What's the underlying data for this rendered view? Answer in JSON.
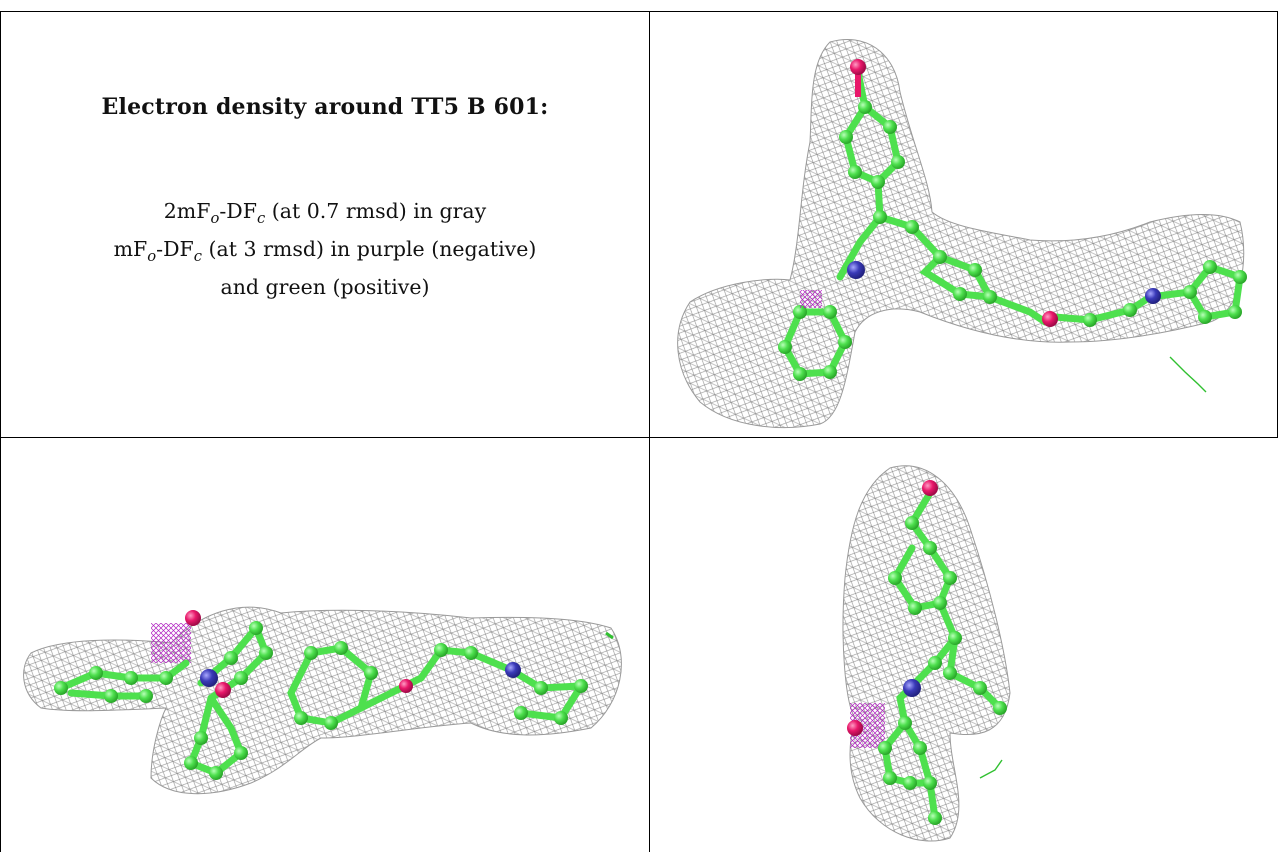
{
  "caption": {
    "title": "Electron density around TT5 B 601:",
    "line1_a": "2mF",
    "line1_sub1": "o",
    "line1_b": "-DF",
    "line1_sub2": "c",
    "line1_c": " (at 0.7 rmsd) in gray",
    "line2_a": "mF",
    "line2_sub1": "o",
    "line2_b": "-DF",
    "line2_sub2": "c",
    "line2_c": " (at 3 rmsd) in purple (negative)",
    "line3": "and green (positive)"
  },
  "colors": {
    "carbon": "#4ee04e",
    "oxygen": "#e8186a",
    "nitrogen": "#3a3ab8",
    "mesh_2fofc": "#8a8a8a",
    "mesh_negative": "#b020c0",
    "mesh_positive": "#30c030"
  },
  "panels": [
    {
      "view": "top-right",
      "description_icon": "molecule-density-view"
    },
    {
      "view": "bottom-left",
      "description_icon": "molecule-density-view"
    },
    {
      "view": "bottom-right",
      "description_icon": "molecule-density-view"
    }
  ]
}
